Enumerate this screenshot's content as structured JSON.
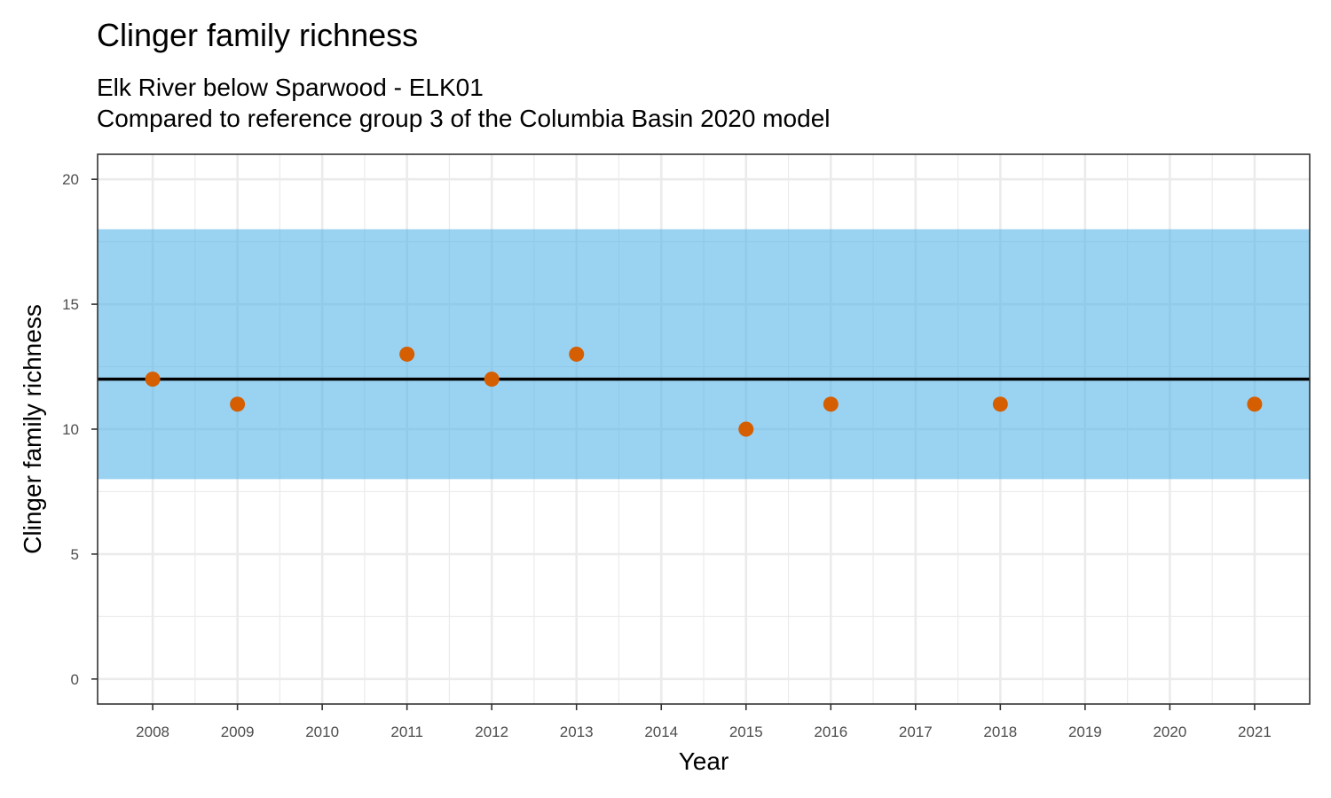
{
  "chart_data": {
    "type": "scatter",
    "title": "Clinger family richness",
    "subtitle_lines": [
      "Elk River below Sparwood - ELK01",
      "Compared to reference group 3 of the Columbia Basin 2020 model"
    ],
    "xlabel": "Year",
    "ylabel": "Clinger family richness",
    "x_ticks": [
      2008,
      2009,
      2010,
      2011,
      2012,
      2013,
      2014,
      2015,
      2016,
      2017,
      2018,
      2019,
      2020,
      2021
    ],
    "y_ticks": [
      0,
      5,
      10,
      15,
      20
    ],
    "xlim": [
      2007.35,
      2021.65
    ],
    "ylim": [
      -1,
      21
    ],
    "grid": true,
    "reference_band": {
      "low": 8,
      "high": 18,
      "color": "#56B4E9",
      "opacity": 0.6
    },
    "reference_line": {
      "value": 12,
      "color": "#000000"
    },
    "points": [
      {
        "x": 2008,
        "y": 12
      },
      {
        "x": 2009,
        "y": 11
      },
      {
        "x": 2011,
        "y": 13
      },
      {
        "x": 2012,
        "y": 12
      },
      {
        "x": 2013,
        "y": 13
      },
      {
        "x": 2015,
        "y": 10
      },
      {
        "x": 2016,
        "y": 11
      },
      {
        "x": 2018,
        "y": 11
      },
      {
        "x": 2021,
        "y": 11
      }
    ],
    "point_color": "#D55E00"
  }
}
